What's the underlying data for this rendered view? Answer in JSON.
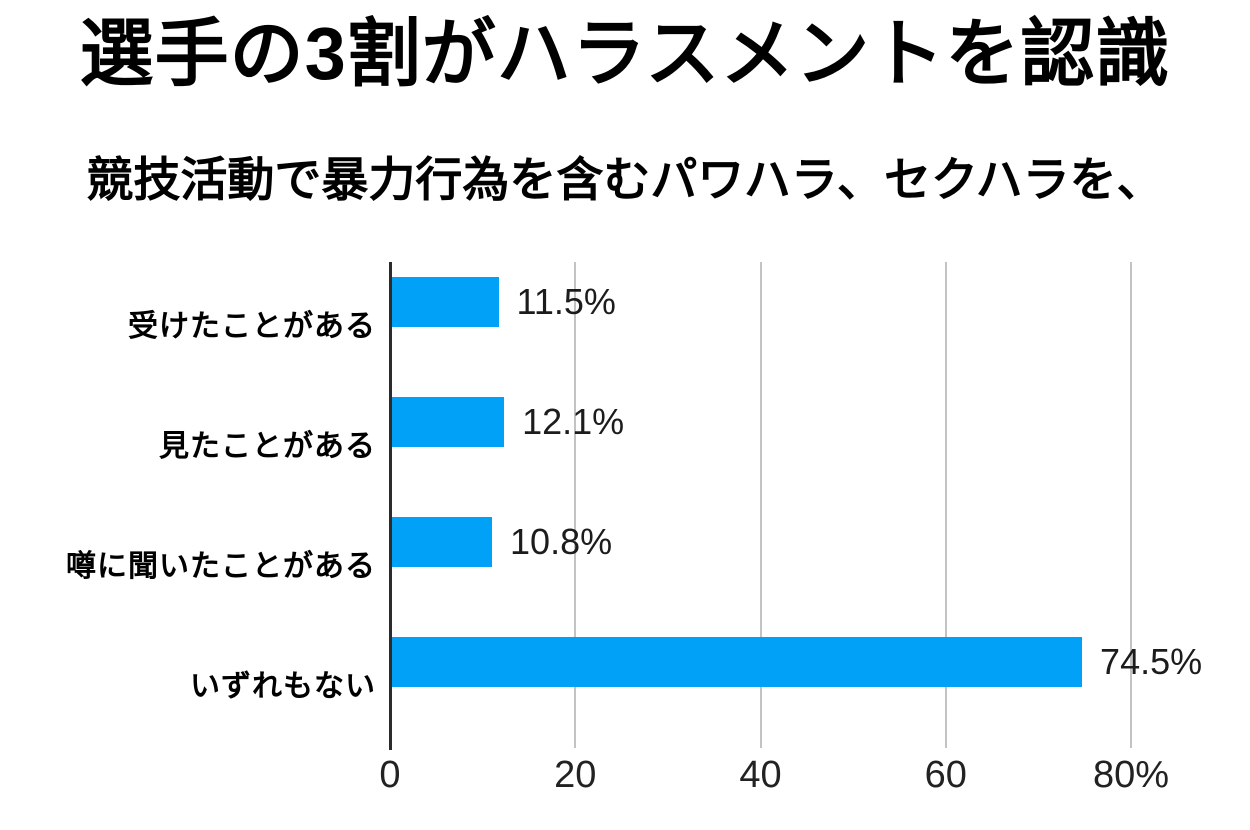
{
  "header": {
    "title": "選手の3割がハラスメントを認識",
    "subtitle": "競技活動で暴力行為を含むパワハラ、セクハラを、"
  },
  "chart_data": {
    "type": "bar",
    "orientation": "horizontal",
    "title": "選手の3割がハラスメントを認識",
    "subtitle": "競技活動で暴力行為を含むパワハラ、セクハラを、",
    "categories": [
      "受けたことがある",
      "見たことがある",
      "噂に聞いたことがある",
      "いずれもない"
    ],
    "values": [
      11.5,
      12.1,
      10.8,
      74.5
    ],
    "value_labels": [
      "11.5%",
      "12.1%",
      "10.8%",
      "74.5%"
    ],
    "xlabel": "",
    "ylabel": "",
    "xlim": [
      0,
      80
    ],
    "x_ticks": [
      0,
      20,
      40,
      60,
      80
    ],
    "x_tick_labels": [
      "0",
      "20",
      "40",
      "60",
      "80%"
    ],
    "grid": "vertical-only",
    "legend": "none",
    "bar_color": "#00a1f7"
  },
  "colors": {
    "bar": "#00a1f7",
    "gridline": "#c3c3c3",
    "axis": "#2b2b2b",
    "text": "#000000",
    "background": "#ffffff"
  }
}
